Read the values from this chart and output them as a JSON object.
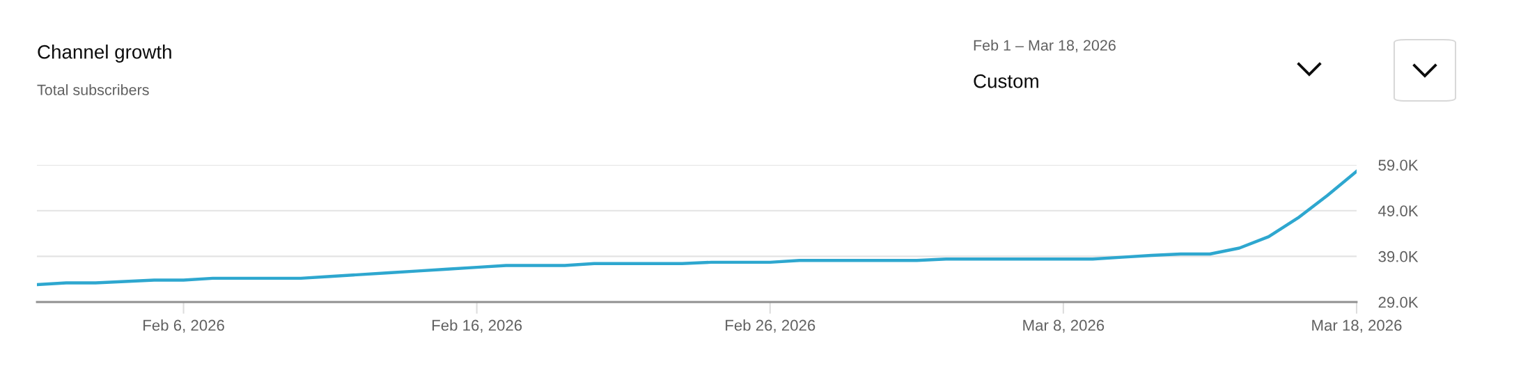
{
  "chart_data": {
    "type": "line",
    "title": "Channel growth",
    "subtitle": "Total subscribers",
    "annotations": [
      "Feb 1 – Mar 18, 2026",
      "Custom"
    ],
    "x": [
      "2026-02-01",
      "2026-02-02",
      "2026-02-03",
      "2026-02-04",
      "2026-02-05",
      "2026-02-06",
      "2026-02-07",
      "2026-02-08",
      "2026-02-09",
      "2026-02-10",
      "2026-02-11",
      "2026-02-12",
      "2026-02-13",
      "2026-02-14",
      "2026-02-15",
      "2026-02-16",
      "2026-02-17",
      "2026-02-18",
      "2026-02-19",
      "2026-02-20",
      "2026-02-21",
      "2026-02-22",
      "2026-02-23",
      "2026-02-24",
      "2026-02-25",
      "2026-02-26",
      "2026-02-27",
      "2026-02-28",
      "2026-03-01",
      "2026-03-02",
      "2026-03-03",
      "2026-03-04",
      "2026-03-05",
      "2026-03-06",
      "2026-03-07",
      "2026-03-08",
      "2026-03-09",
      "2026-03-10",
      "2026-03-11",
      "2026-03-12",
      "2026-03-13",
      "2026-03-14",
      "2026-03-15",
      "2026-03-16",
      "2026-03-17",
      "2026-03-18"
    ],
    "series": [
      {
        "color": "#2ea7cf",
        "values": [
          32800,
          33200,
          33200,
          33500,
          33800,
          33800,
          34200,
          34200,
          34200,
          34200,
          34600,
          35000,
          35400,
          35800,
          36200,
          36600,
          37000,
          37000,
          37000,
          37400,
          37400,
          37400,
          37400,
          37700,
          37700,
          37700,
          38100,
          38100,
          38100,
          38100,
          38100,
          38400,
          38400,
          38400,
          38400,
          38400,
          38400,
          38800,
          39200,
          39500,
          39500,
          40800,
          43300,
          47400,
          52300,
          57600
        ]
      }
    ],
    "xlim": [
      "2026-02-01",
      "2026-03-18"
    ],
    "xticks": [
      {
        "value": "2026-02-06",
        "label": "Feb 6, 2026"
      },
      {
        "value": "2026-02-16",
        "label": "Feb 16, 2026"
      },
      {
        "value": "2026-02-26",
        "label": "Feb 26, 2026"
      },
      {
        "value": "2026-03-08",
        "label": "Mar 8, 2026"
      },
      {
        "value": "2026-03-18",
        "label": "Mar 18, 2026"
      }
    ],
    "ylim": [
      29000,
      59000
    ],
    "yticks": [
      {
        "value": 29000,
        "label": "29.0K"
      },
      {
        "value": 39000,
        "label": "39.0K"
      },
      {
        "value": 49000,
        "label": "49.0K"
      },
      {
        "value": 59000,
        "label": "59.0K"
      }
    ],
    "grid": "y",
    "legend": false,
    "marker": "none",
    "line_style": "solid"
  }
}
